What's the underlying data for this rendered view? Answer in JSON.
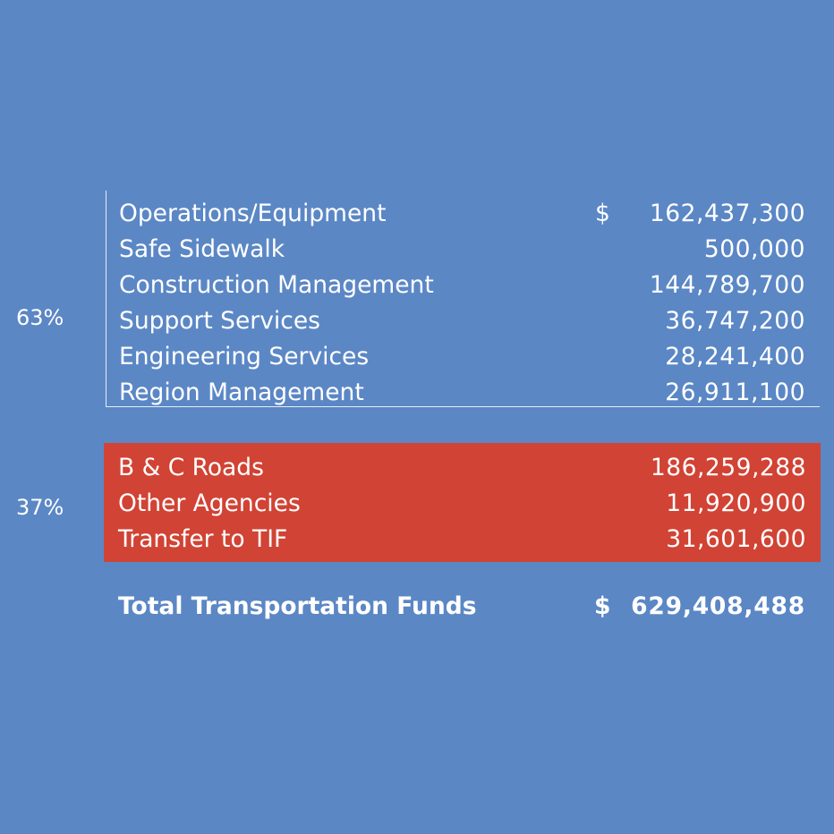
{
  "colors": {
    "background": "#5b87c5",
    "highlight": "#d14334",
    "text": "#ffffff",
    "rule": "#e6ecf5"
  },
  "group_a": {
    "percent": "63%",
    "currency_symbol": "$",
    "rows": [
      {
        "label": "Operations/Equipment",
        "value": "162,437,300"
      },
      {
        "label": "Safe Sidewalk",
        "value": "500,000"
      },
      {
        "label": "Construction Management",
        "value": "144,789,700"
      },
      {
        "label": "Support Services",
        "value": "36,747,200"
      },
      {
        "label": "Engineering Services",
        "value": "28,241,400"
      },
      {
        "label": "Region Management",
        "value": "26,911,100"
      }
    ]
  },
  "group_b": {
    "percent": "37%",
    "rows": [
      {
        "label": "B & C Roads",
        "value": "186,259,288"
      },
      {
        "label": "Other Agencies",
        "value": "11,920,900"
      },
      {
        "label": "Transfer to TIF",
        "value": "31,601,600"
      }
    ]
  },
  "total": {
    "label": "Total Transportation Funds",
    "currency_symbol": "$",
    "value": "629,408,488"
  }
}
